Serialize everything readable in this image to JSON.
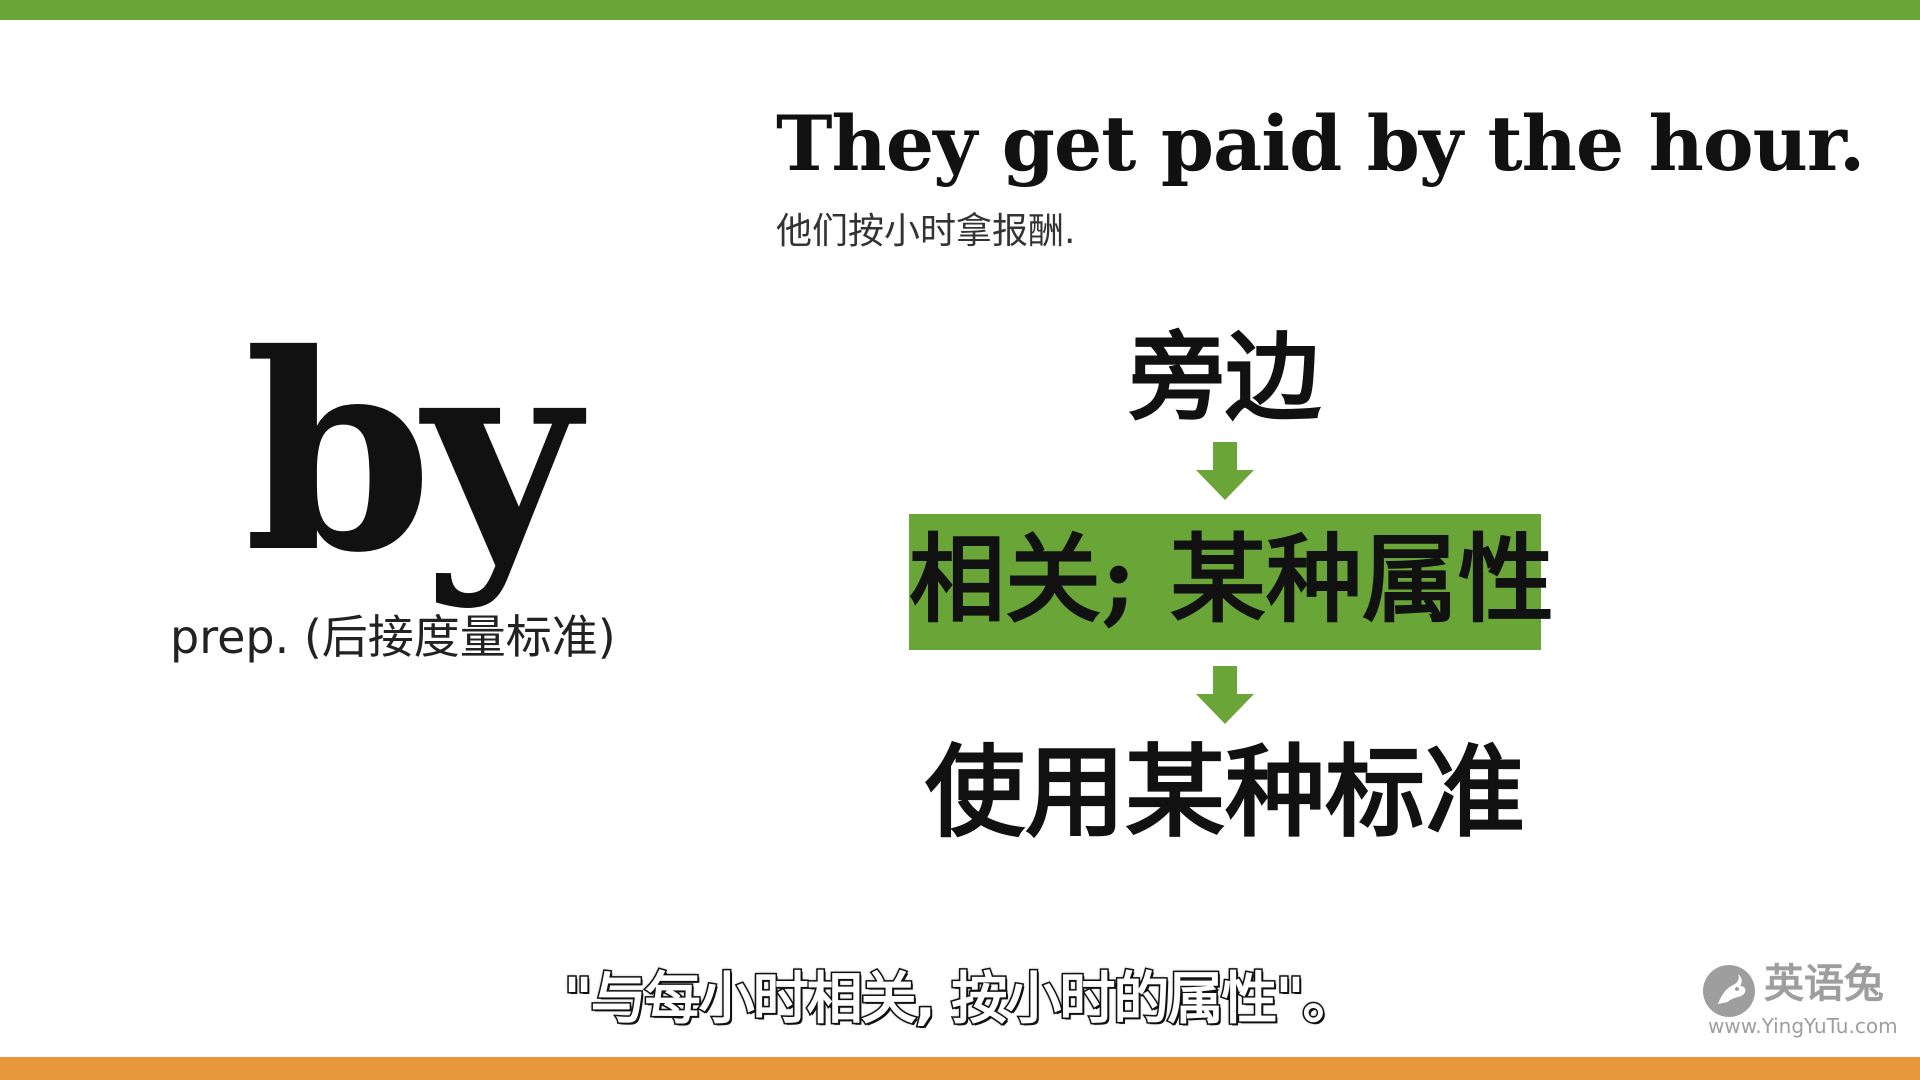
{
  "colors": {
    "accent_green": "#69a537",
    "accent_orange": "#e8973a",
    "text": "#111111"
  },
  "example": {
    "sentence": "They get paid by the hour.",
    "translation": "他们按小时拿报酬."
  },
  "word": {
    "headword": "by",
    "part_of_speech": "prep. (后接度量标准)"
  },
  "meaning_flow": {
    "steps": [
      "旁边",
      "相关; 某种属性",
      "使用某种标准"
    ],
    "highlighted_step": 1,
    "arrow_icon": "down-arrow-icon"
  },
  "subtitle": {
    "text": "\"与每小时相关, 按小时的属性\"。"
  },
  "logo": {
    "icon": "rabbit-logo-icon",
    "name": "英语兔",
    "url": "www.YingYuTu.com"
  }
}
